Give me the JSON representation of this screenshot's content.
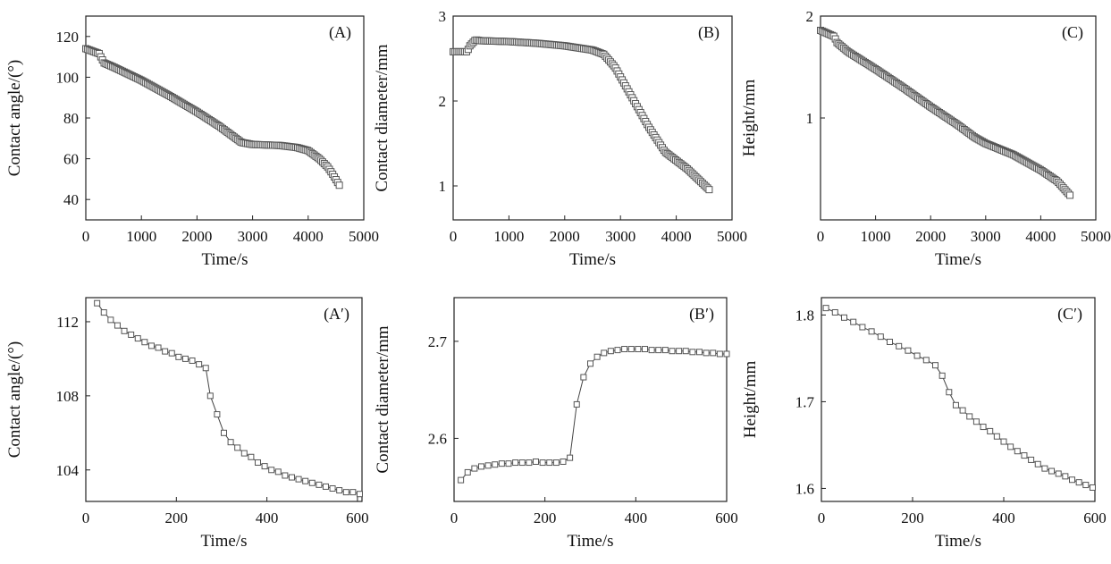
{
  "chart_data": [
    {
      "id": "A",
      "panel_label": "(A)",
      "type": "scatter",
      "xlabel": "Time/s",
      "ylabel": "Contact angle/(°)",
      "xlim": [
        0,
        5000
      ],
      "ylim": [
        30,
        130
      ],
      "xticks": [
        0,
        1000,
        2000,
        3000,
        4000,
        5000
      ],
      "yticks": [
        40,
        60,
        80,
        100,
        120
      ],
      "xtick_labels": [
        "0",
        "1000",
        "2000",
        "3000",
        "4000",
        "5000"
      ],
      "ytick_labels": [
        "40",
        "60",
        "80",
        "100",
        "120"
      ],
      "line": false,
      "marker_step": 30,
      "points": [
        [
          0,
          114
        ],
        [
          100,
          113
        ],
        [
          250,
          111.5
        ],
        [
          270,
          110
        ],
        [
          330,
          107
        ],
        [
          500,
          105
        ],
        [
          1000,
          98.5
        ],
        [
          1500,
          91
        ],
        [
          2000,
          83
        ],
        [
          2400,
          76
        ],
        [
          2600,
          72
        ],
        [
          2800,
          68
        ],
        [
          3000,
          67
        ],
        [
          3500,
          66.5
        ],
        [
          3800,
          65.5
        ],
        [
          4000,
          64
        ],
        [
          4200,
          60
        ],
        [
          4350,
          56
        ],
        [
          4450,
          52
        ],
        [
          4560,
          47
        ]
      ]
    },
    {
      "id": "B",
      "panel_label": "(B)",
      "type": "scatter",
      "xlabel": "Time/s",
      "ylabel": "Contact diameter/mm",
      "xlim": [
        0,
        5000
      ],
      "ylim": [
        0.6,
        3.0
      ],
      "xticks": [
        0,
        1000,
        2000,
        3000,
        4000,
        5000
      ],
      "yticks": [
        1,
        2,
        3
      ],
      "xtick_labels": [
        "0",
        "1000",
        "2000",
        "3000",
        "4000",
        "5000"
      ],
      "ytick_labels": [
        "1",
        "2",
        "3"
      ],
      "line": false,
      "marker_step": 30,
      "points": [
        [
          0,
          2.58
        ],
        [
          250,
          2.58
        ],
        [
          300,
          2.65
        ],
        [
          400,
          2.72
        ],
        [
          500,
          2.71
        ],
        [
          1000,
          2.7
        ],
        [
          1500,
          2.68
        ],
        [
          2000,
          2.65
        ],
        [
          2500,
          2.6
        ],
        [
          2700,
          2.55
        ],
        [
          2900,
          2.4
        ],
        [
          3200,
          2.05
        ],
        [
          3500,
          1.7
        ],
        [
          3800,
          1.4
        ],
        [
          4200,
          1.2
        ],
        [
          4600,
          0.95
        ]
      ]
    },
    {
      "id": "C",
      "panel_label": "(C)",
      "type": "scatter",
      "xlabel": "Time/s",
      "ylabel": "Height/mm",
      "xlim": [
        0,
        5000
      ],
      "ylim": [
        0,
        2
      ],
      "xticks": [
        0,
        1000,
        2000,
        3000,
        4000,
        5000
      ],
      "yticks": [
        1,
        2
      ],
      "xtick_labels": [
        "0",
        "1000",
        "2000",
        "3000",
        "4000",
        "5000"
      ],
      "ytick_labels": [
        "1",
        "2"
      ],
      "line": false,
      "marker_step": 30,
      "points": [
        [
          0,
          1.86
        ],
        [
          250,
          1.8
        ],
        [
          300,
          1.74
        ],
        [
          500,
          1.65
        ],
        [
          1000,
          1.48
        ],
        [
          1500,
          1.3
        ],
        [
          2000,
          1.11
        ],
        [
          2500,
          0.93
        ],
        [
          2800,
          0.81
        ],
        [
          3000,
          0.75
        ],
        [
          3500,
          0.64
        ],
        [
          4000,
          0.49
        ],
        [
          4300,
          0.38
        ],
        [
          4550,
          0.23
        ]
      ]
    },
    {
      "id": "A2",
      "panel_label": "(A′)",
      "type": "line",
      "xlabel": "Time/s",
      "ylabel": "Contact angle/(°)",
      "xlim": [
        0,
        610
      ],
      "ylim": [
        102.3,
        113.3
      ],
      "xticks": [
        0,
        200,
        400,
        600
      ],
      "yticks": [
        104,
        108,
        112
      ],
      "xtick_labels": [
        "0",
        "200",
        "400",
        "600"
      ],
      "ytick_labels": [
        "104",
        "108",
        "112"
      ],
      "line": true,
      "marker_step": 0,
      "points": [
        [
          25,
          113
        ],
        [
          40,
          112.5
        ],
        [
          55,
          112.1
        ],
        [
          70,
          111.8
        ],
        [
          85,
          111.5
        ],
        [
          100,
          111.3
        ],
        [
          115,
          111.1
        ],
        [
          130,
          110.9
        ],
        [
          145,
          110.7
        ],
        [
          160,
          110.6
        ],
        [
          175,
          110.4
        ],
        [
          190,
          110.3
        ],
        [
          205,
          110.1
        ],
        [
          220,
          110
        ],
        [
          235,
          109.9
        ],
        [
          250,
          109.7
        ],
        [
          265,
          109.5
        ],
        [
          275,
          108
        ],
        [
          290,
          107
        ],
        [
          305,
          106
        ],
        [
          320,
          105.5
        ],
        [
          335,
          105.2
        ],
        [
          350,
          104.9
        ],
        [
          365,
          104.7
        ],
        [
          380,
          104.4
        ],
        [
          395,
          104.2
        ],
        [
          410,
          104
        ],
        [
          425,
          103.9
        ],
        [
          440,
          103.7
        ],
        [
          455,
          103.6
        ],
        [
          470,
          103.5
        ],
        [
          485,
          103.4
        ],
        [
          500,
          103.3
        ],
        [
          515,
          103.2
        ],
        [
          530,
          103.1
        ],
        [
          545,
          103
        ],
        [
          560,
          102.9
        ],
        [
          575,
          102.8
        ],
        [
          590,
          102.8
        ],
        [
          605,
          102.7
        ]
      ]
    },
    {
      "id": "B2",
      "panel_label": "(B′)",
      "type": "line",
      "xlabel": "Time/s",
      "ylabel": "Contact diameter/mm",
      "xlim": [
        0,
        600
      ],
      "ylim": [
        2.535,
        2.745
      ],
      "xticks": [
        0,
        200,
        400,
        600
      ],
      "yticks": [
        2.6,
        2.7
      ],
      "xtick_labels": [
        "0",
        "200",
        "400",
        "600"
      ],
      "ytick_labels": [
        "2.6",
        "2.7"
      ],
      "line": true,
      "marker_step": 0,
      "points": [
        [
          15,
          2.557
        ],
        [
          30,
          2.565
        ],
        [
          45,
          2.569
        ],
        [
          60,
          2.571
        ],
        [
          75,
          2.572
        ],
        [
          90,
          2.573
        ],
        [
          105,
          2.574
        ],
        [
          120,
          2.574
        ],
        [
          135,
          2.575
        ],
        [
          150,
          2.575
        ],
        [
          165,
          2.575
        ],
        [
          180,
          2.576
        ],
        [
          195,
          2.575
        ],
        [
          210,
          2.575
        ],
        [
          225,
          2.575
        ],
        [
          240,
          2.576
        ],
        [
          255,
          2.58
        ],
        [
          270,
          2.635
        ],
        [
          285,
          2.663
        ],
        [
          300,
          2.677
        ],
        [
          315,
          2.684
        ],
        [
          330,
          2.688
        ],
        [
          345,
          2.69
        ],
        [
          360,
          2.691
        ],
        [
          375,
          2.692
        ],
        [
          390,
          2.692
        ],
        [
          405,
          2.692
        ],
        [
          420,
          2.692
        ],
        [
          435,
          2.691
        ],
        [
          450,
          2.691
        ],
        [
          465,
          2.691
        ],
        [
          480,
          2.69
        ],
        [
          495,
          2.69
        ],
        [
          510,
          2.69
        ],
        [
          525,
          2.689
        ],
        [
          540,
          2.689
        ],
        [
          555,
          2.688
        ],
        [
          570,
          2.688
        ],
        [
          585,
          2.687
        ],
        [
          600,
          2.687
        ]
      ]
    },
    {
      "id": "C2",
      "panel_label": "(C′)",
      "type": "line",
      "xlabel": "Time/s",
      "ylabel": "Height/mm",
      "xlim": [
        0,
        600
      ],
      "ylim": [
        1.585,
        1.82
      ],
      "xticks": [
        0,
        200,
        400,
        600
      ],
      "yticks": [
        1.6,
        1.7,
        1.8
      ],
      "xtick_labels": [
        "0",
        "200",
        "400",
        "600"
      ],
      "ytick_labels": [
        "1.6",
        "1.7",
        "1.8"
      ],
      "line": true,
      "marker_step": 0,
      "points": [
        [
          10,
          1.808
        ],
        [
          30,
          1.803
        ],
        [
          50,
          1.797
        ],
        [
          70,
          1.792
        ],
        [
          90,
          1.786
        ],
        [
          110,
          1.781
        ],
        [
          130,
          1.775
        ],
        [
          150,
          1.769
        ],
        [
          170,
          1.764
        ],
        [
          190,
          1.759
        ],
        [
          210,
          1.753
        ],
        [
          230,
          1.748
        ],
        [
          250,
          1.742
        ],
        [
          265,
          1.73
        ],
        [
          280,
          1.711
        ],
        [
          295,
          1.696
        ],
        [
          310,
          1.69
        ],
        [
          325,
          1.683
        ],
        [
          340,
          1.677
        ],
        [
          355,
          1.671
        ],
        [
          370,
          1.666
        ],
        [
          385,
          1.66
        ],
        [
          400,
          1.654
        ],
        [
          415,
          1.648
        ],
        [
          430,
          1.643
        ],
        [
          445,
          1.638
        ],
        [
          460,
          1.633
        ],
        [
          475,
          1.628
        ],
        [
          490,
          1.623
        ],
        [
          505,
          1.62
        ],
        [
          520,
          1.617
        ],
        [
          535,
          1.614
        ],
        [
          550,
          1.61
        ],
        [
          565,
          1.607
        ],
        [
          580,
          1.604
        ],
        [
          595,
          1.601
        ]
      ]
    }
  ]
}
